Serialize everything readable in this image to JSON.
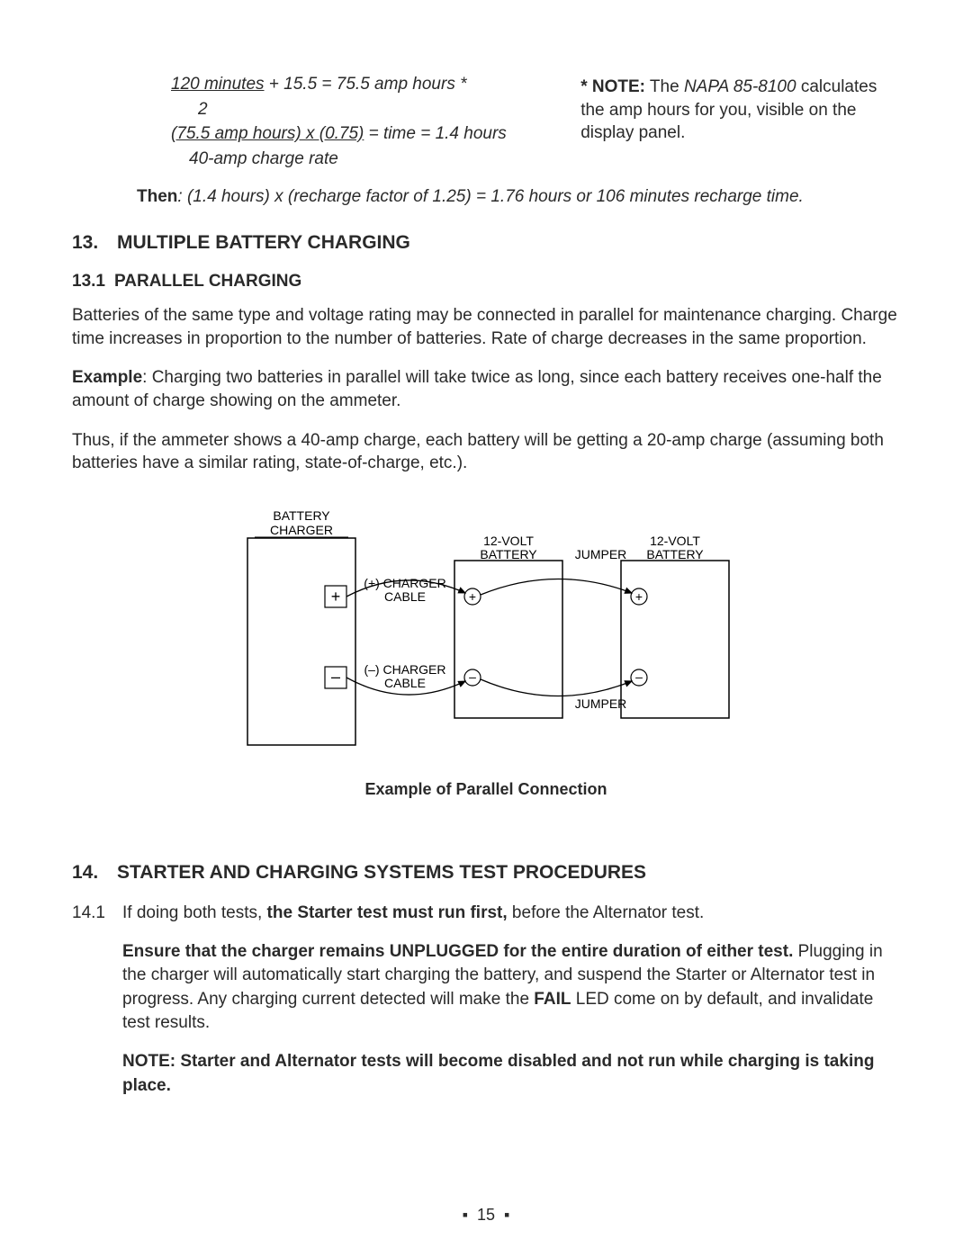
{
  "calc": {
    "line1_u": "120 minutes",
    "line1_rest": " + 15.5 = 75.5 amp hours *",
    "line2": "2",
    "line3_u": "(75.5 amp hours) x (0.75)",
    "line3_rest": " = time = 1.4 hours",
    "line4": "40-amp charge rate"
  },
  "note": {
    "star": "* NOTE:",
    "rest1": " The ",
    "model": "NAPA 85-8100",
    "rest2": " calculates the amp hours for you, visible on the display panel."
  },
  "then": {
    "label": "Then",
    "rest": ": (1.4 hours) x (recharge factor of 1.25) = 1.76 hours or 106 minutes recharge time."
  },
  "sec13": {
    "num": "13.",
    "title": "MULTIPLE BATTERY CHARGING",
    "sub_num": "13.1",
    "sub_title": "PARALLEL CHARGING",
    "p1": "Batteries of the same type and voltage rating may be connected in parallel for maintenance charging. Charge time increases in proportion to the number of batteries. Rate of charge decreases in the same proportion.",
    "p2_b": "Example",
    "p2_rest": ": Charging two batteries in parallel will take twice as long, since each battery receives one-half the amount of charge showing on the ammeter.",
    "p3": "Thus, if the ammeter shows a 40-amp charge, each battery will be getting a 20-amp charge (assuming both batteries have a similar rating, state-of-charge, etc.).",
    "caption": "Example of Parallel Connection"
  },
  "diagram": {
    "labels": {
      "charger_l1": "BATTERY",
      "charger_l2": "CHARGER",
      "bat_l1": "12-VOLT",
      "bat_l2": "BATTERY",
      "jumper": "JUMPER",
      "pos_cable_l1": "(+) CHARGER",
      "pos_cable_l2": "CABLE",
      "neg_cable_l1": "(–) CHARGER",
      "neg_cable_l2": "CABLE",
      "plus": "+",
      "minus": "–"
    },
    "style": {
      "stroke": "#000000",
      "font_family": "Arial, Helvetica, sans-serif",
      "font_size_label": 14,
      "font_size_terminal": 18
    }
  },
  "sec14": {
    "num": "14.",
    "title": "STARTER AND CHARGING SYSTEMS TEST PROCEDURES",
    "i1_num": "14.1",
    "i1_a": "If doing both tests, ",
    "i1_b": "the Starter test must run first,",
    "i1_c": " before the Alternator test.",
    "i2_b": "Ensure that the charger remains UNPLUGGED for the entire duration of either test.",
    "i2_rest1": " Plugging in the charger will automatically start charging the battery, and suspend the Starter or Alternator test in progress. Any charging current detected will make the ",
    "i2_fail": "FAIL",
    "i2_rest2": " LED come on by default, and invalidate test results.",
    "i3": "NOTE: Starter and Alternator tests will become disabled and not run while charging is taking place."
  },
  "page": "15"
}
